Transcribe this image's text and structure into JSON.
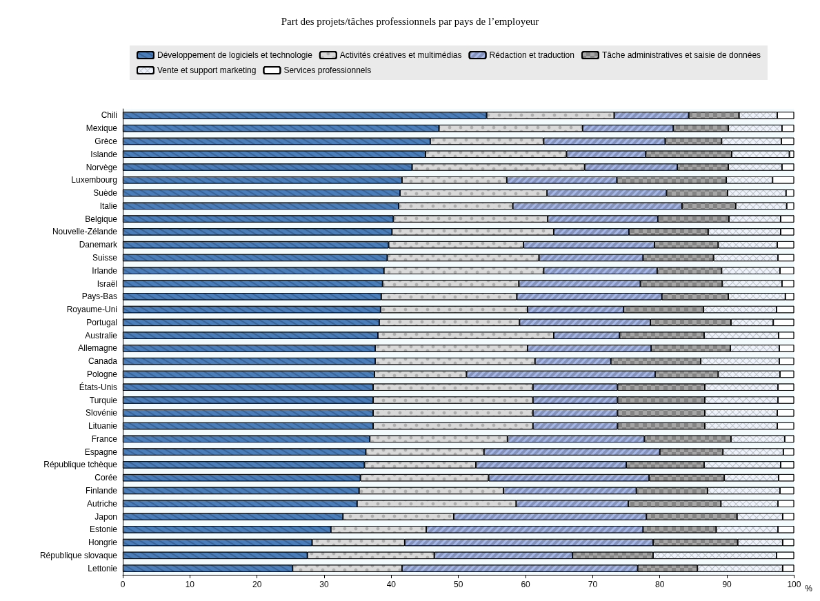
{
  "chart_data": {
    "type": "bar",
    "orientation": "horizontal",
    "stacked": true,
    "title": "Part des projets/tâches professionnels par pays de l’employeur",
    "xlabel": "%",
    "categories": [
      "Chili",
      "Mexique",
      "Grèce",
      "Islande",
      "Norvège",
      "Luxembourg",
      "Suède",
      "Italie",
      "Belgique",
      "Nouvelle-Zélande",
      "Danemark",
      "Suisse",
      "Irlande",
      "Israël",
      "Pays-Bas",
      "Royaume-Uni",
      "Portugal",
      "Australie",
      "Allemagne",
      "Canada",
      "Pologne",
      "États-Unis",
      "Turquie",
      "Slovénie",
      "Lituanie",
      "France",
      "Espagne",
      "République tchèque",
      "Corée",
      "Finlande",
      "Autriche",
      "Japon",
      "Estonie",
      "Hongrie",
      "République slovaque",
      "Lettonie"
    ],
    "series": [
      {
        "name": "Développement de logiciels et technologie",
        "color": "#4a7ebb",
        "values": [
          54.2,
          47.1,
          45.8,
          45.1,
          43.1,
          41.6,
          41.3,
          41.1,
          40.3,
          40.1,
          39.6,
          39.4,
          38.9,
          38.7,
          38.5,
          38.4,
          38.2,
          38.0,
          37.6,
          37.6,
          37.5,
          37.3,
          37.3,
          37.3,
          37.3,
          36.8,
          36.2,
          36.0,
          35.4,
          35.2,
          34.9,
          32.8,
          31.0,
          28.2,
          27.5,
          25.3
        ]
      },
      {
        "name": "Activités créatives et multimédias",
        "color": "#d9d9d9",
        "values": [
          19.0,
          21.4,
          16.9,
          21.0,
          25.7,
          15.6,
          21.9,
          17.0,
          23.0,
          24.1,
          20.1,
          22.6,
          23.8,
          20.3,
          20.2,
          21.9,
          20.9,
          26.2,
          22.7,
          23.8,
          13.7,
          23.8,
          23.8,
          23.8,
          23.8,
          20.5,
          17.6,
          16.6,
          19.1,
          21.5,
          23.7,
          16.5,
          14.2,
          13.8,
          18.9,
          16.3
        ]
      },
      {
        "name": "Rédaction et traduction",
        "color": "#a6b8e8",
        "values": [
          11.1,
          13.5,
          18.1,
          11.8,
          13.8,
          16.4,
          17.8,
          25.2,
          16.4,
          11.2,
          19.5,
          15.5,
          16.9,
          18.1,
          21.6,
          14.3,
          19.5,
          9.8,
          18.4,
          11.3,
          28.1,
          12.6,
          12.6,
          12.6,
          12.6,
          20.4,
          26.2,
          22.4,
          23.9,
          19.8,
          16.7,
          28.7,
          32.3,
          37.0,
          20.6,
          35.1
        ]
      },
      {
        "name": "Tâche administratives et saisie de données",
        "color": "#a6a6a6",
        "values": [
          7.5,
          8.2,
          8.4,
          12.8,
          7.6,
          16.3,
          9.1,
          8.0,
          10.6,
          11.8,
          9.5,
          10.5,
          9.6,
          12.2,
          9.9,
          11.9,
          12.0,
          12.6,
          11.8,
          13.4,
          9.4,
          13.0,
          13.0,
          13.0,
          13.0,
          12.9,
          9.4,
          11.6,
          11.2,
          10.6,
          13.8,
          13.5,
          10.9,
          12.6,
          12.0,
          8.9
        ]
      },
      {
        "name": "Vente et support marketing",
        "color": "#eef3fb",
        "values": [
          5.7,
          8.0,
          8.9,
          8.6,
          8.0,
          6.9,
          8.7,
          7.6,
          7.7,
          10.8,
          8.8,
          9.6,
          8.7,
          8.9,
          8.5,
          10.9,
          6.3,
          11.1,
          7.3,
          11.7,
          9.2,
          10.9,
          10.9,
          10.8,
          10.8,
          8.0,
          9.0,
          11.4,
          8.1,
          10.8,
          8.5,
          6.8,
          9.2,
          6.7,
          18.4,
          12.7
        ]
      },
      {
        "name": "Services professionnels",
        "color": "#ffffff",
        "values": [
          2.5,
          1.8,
          1.9,
          0.7,
          1.8,
          3.2,
          1.2,
          1.1,
          2.0,
          2.0,
          2.5,
          2.4,
          2.1,
          1.8,
          1.3,
          2.6,
          3.1,
          2.3,
          2.2,
          2.2,
          2.1,
          2.4,
          2.4,
          2.5,
          2.5,
          1.4,
          1.6,
          2.0,
          2.3,
          2.1,
          2.4,
          1.7,
          2.4,
          1.7,
          2.6,
          1.7
        ]
      }
    ],
    "xlim": [
      0,
      100
    ],
    "xticks": [
      0,
      10,
      20,
      30,
      40,
      50,
      60,
      70,
      80,
      90,
      100
    ],
    "legend": "top",
    "grid": false
  }
}
